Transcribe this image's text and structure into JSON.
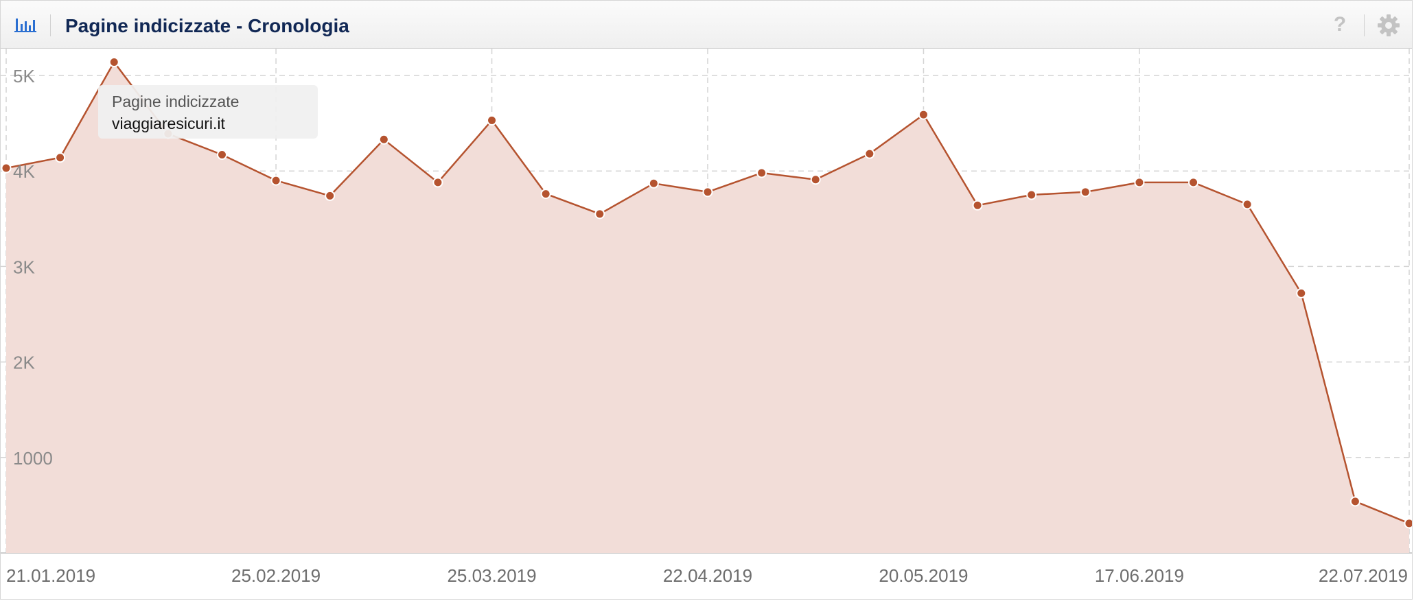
{
  "header": {
    "title": "Pagine indicizzate - Cronologia",
    "help_label": "?"
  },
  "icons": {
    "chart": "bar-chart-icon",
    "help": "help-icon",
    "settings": "gear-icon"
  },
  "colors": {
    "line": "#b5532f",
    "area": "#f2ddd8",
    "title": "#112855",
    "accent_icon": "#2b6fd1"
  },
  "tooltip": {
    "series": "Pagine indicizzate",
    "site": "viaggiaresicuri.it"
  },
  "chart_data": {
    "type": "area",
    "title": "Pagine indicizzate - Cronologia",
    "xlabel": "",
    "ylabel": "",
    "x_tick_labels": [
      "21.01.2019",
      "25.02.2019",
      "25.03.2019",
      "22.04.2019",
      "20.05.2019",
      "17.06.2019",
      "22.07.2019"
    ],
    "y_tick_labels": [
      "1000",
      "2K",
      "3K",
      "4K",
      "5K"
    ],
    "y_ticks": [
      1000,
      2000,
      3000,
      4000,
      5000
    ],
    "ylim": [
      0,
      5300
    ],
    "grid": true,
    "legend": "none",
    "series": [
      {
        "name": "Pagine indicizzate",
        "x": [
          "21.01.2019",
          "28.01.2019",
          "04.02.2019",
          "11.02.2019",
          "18.02.2019",
          "25.02.2019",
          "04.03.2019",
          "11.03.2019",
          "18.03.2019",
          "25.03.2019",
          "01.04.2019",
          "08.04.2019",
          "15.04.2019",
          "22.04.2019",
          "29.04.2019",
          "06.05.2019",
          "13.05.2019",
          "20.05.2019",
          "27.05.2019",
          "03.06.2019",
          "10.06.2019",
          "17.06.2019",
          "24.06.2019",
          "01.07.2019",
          "08.07.2019",
          "15.07.2019",
          "22.07.2019"
        ],
        "values": [
          4030,
          4140,
          5140,
          4390,
          4170,
          3900,
          3740,
          4330,
          3880,
          4530,
          3760,
          3550,
          3870,
          3780,
          3980,
          3910,
          4180,
          4590,
          3640,
          3750,
          3780,
          3880,
          3880,
          3650,
          2720,
          540,
          310
        ]
      }
    ]
  }
}
